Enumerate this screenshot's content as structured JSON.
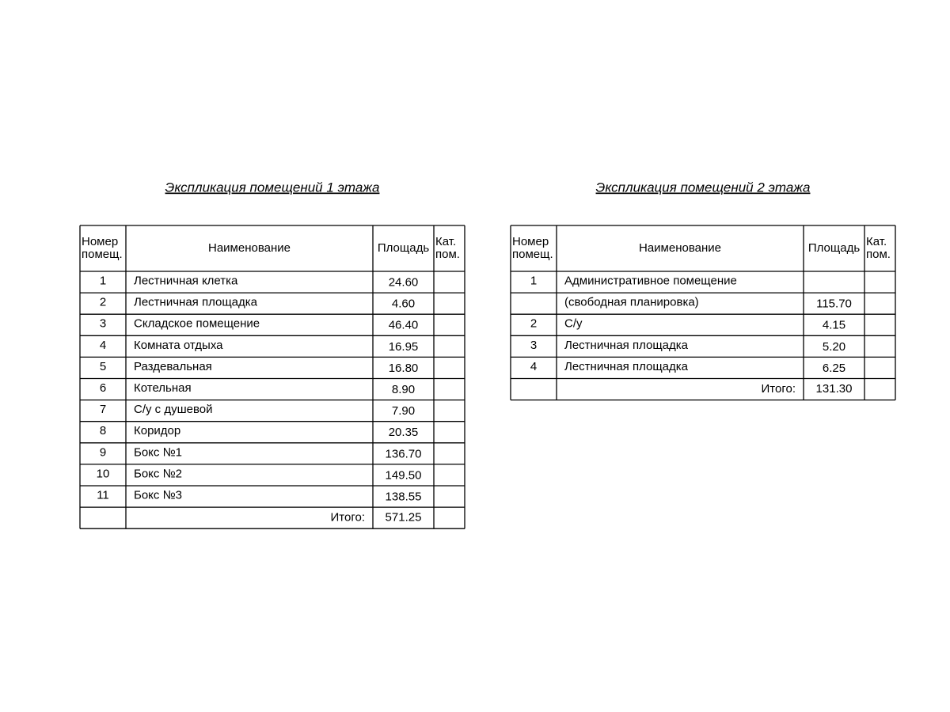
{
  "tables": [
    {
      "title": "Экспликация помещений 1 этажа",
      "header": [
        [
          "Номер",
          "помещ."
        ],
        [
          "Наименование"
        ],
        [
          "Площадь"
        ],
        [
          "Кат.",
          "пом."
        ]
      ],
      "rows": [
        {
          "no": "1",
          "name": "Лестничная клетка",
          "area": "24.60"
        },
        {
          "no": "2",
          "name": "Лестничная площадка",
          "area": "4.60"
        },
        {
          "no": "3",
          "name": "Складское помещение",
          "area": "46.40"
        },
        {
          "no": "4",
          "name": "Комната отдыха",
          "area": "16.95"
        },
        {
          "no": "5",
          "name": "Раздевальная",
          "area": "16.80"
        },
        {
          "no": "6",
          "name": "Котельная",
          "area": "8.90"
        },
        {
          "no": "7",
          "name": "С/у с душевой",
          "area": "7.90"
        },
        {
          "no": "8",
          "name": "Коридор",
          "area": "20.35"
        },
        {
          "no": "9",
          "name": "Бокс №1",
          "area": "136.70"
        },
        {
          "no": "10",
          "name": "Бокс №2",
          "area": "149.50"
        },
        {
          "no": "11",
          "name": "Бокс №3",
          "area": "138.55"
        }
      ],
      "total": {
        "label": "Итого:",
        "value": "571.25"
      }
    },
    {
      "title": "Экспликация помещений 2 этажа",
      "header": [
        [
          "Номер",
          "помещ."
        ],
        [
          "Наименование"
        ],
        [
          "Площадь"
        ],
        [
          "Кат.",
          "пом."
        ]
      ],
      "rows": [
        {
          "no": "1",
          "name": "Административное помещение"
        },
        {
          "name": "(свободная планировка)",
          "area": "115.70"
        },
        {
          "no": "2",
          "name": "С/у",
          "area": "4.15"
        },
        {
          "no": "3",
          "name": "Лестничная площадка",
          "area": "5.20"
        },
        {
          "no": "4",
          "name": "Лестничная площадка",
          "area": "6.25"
        }
      ],
      "total": {
        "label": "Итого:",
        "value": "131.30"
      }
    }
  ]
}
